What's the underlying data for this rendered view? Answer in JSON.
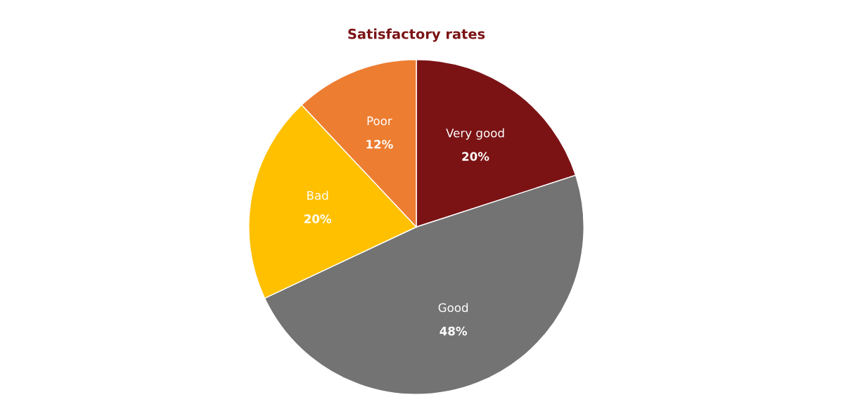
{
  "chart_data": {
    "type": "pie",
    "title": "Satisfactory rates",
    "categories": [
      "Very good",
      "Good",
      "Bad",
      "Poor"
    ],
    "values": [
      20,
      48,
      20,
      12
    ],
    "value_labels": [
      "20%",
      "48%",
      "20%",
      "12%"
    ],
    "colors": [
      "#7b1315",
      "#737373",
      "#ffc000",
      "#ed7d31"
    ],
    "legend": false
  }
}
